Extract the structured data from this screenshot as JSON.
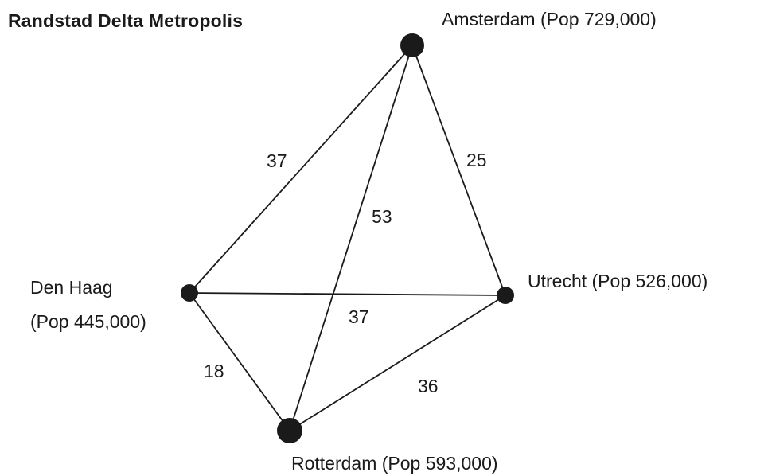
{
  "title": "Randstad Delta Metropolis",
  "colors": {
    "ink": "#1a1a1a",
    "background": "#ffffff"
  },
  "cities": [
    {
      "id": "amsterdam",
      "label": "Amsterdam (Pop 729,000)"
    },
    {
      "id": "utrecht",
      "label": "Utrecht (Pop 526,000)"
    },
    {
      "id": "denhaag",
      "label_line1": "Den Haag",
      "label_line2": "(Pop 445,000)"
    },
    {
      "id": "rotterdam",
      "label": "Rotterdam (Pop 593,000)"
    }
  ],
  "edges": [
    {
      "from": "amsterdam",
      "to": "denhaag",
      "distance": "37"
    },
    {
      "from": "amsterdam",
      "to": "rotterdam",
      "distance": "53"
    },
    {
      "from": "amsterdam",
      "to": "utrecht",
      "distance": "25"
    },
    {
      "from": "denhaag",
      "to": "utrecht",
      "distance": "37"
    },
    {
      "from": "denhaag",
      "to": "rotterdam",
      "distance": "18"
    },
    {
      "from": "rotterdam",
      "to": "utrecht",
      "distance": "36"
    }
  ]
}
